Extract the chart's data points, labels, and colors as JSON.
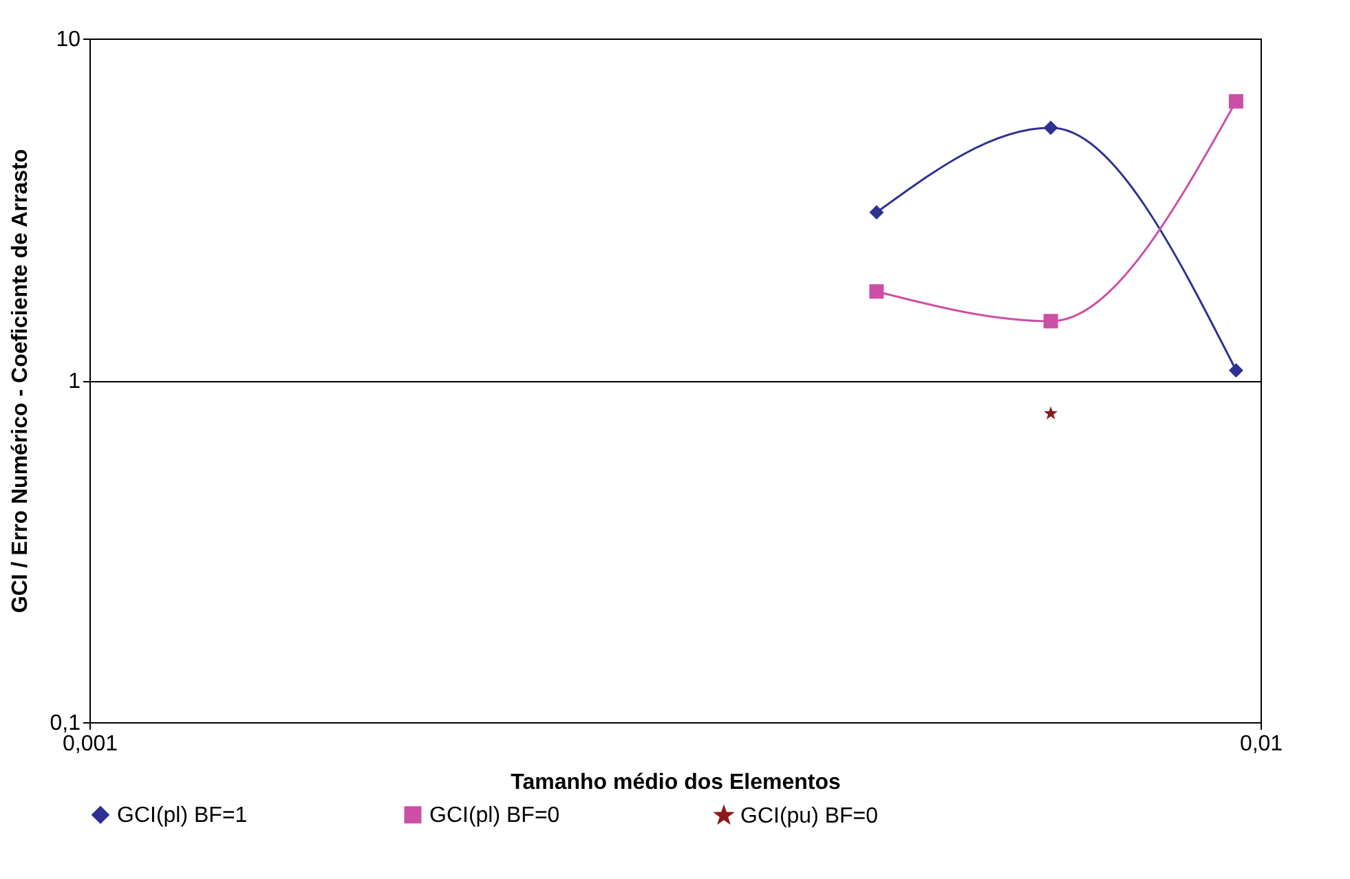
{
  "chart_data": {
    "type": "line",
    "xlabel": "Tamanho médio dos Elementos",
    "ylabel": "GCI / Erro Numérico - Coeficiente de Arrasto",
    "log": "xy",
    "grid": "y",
    "legend": "bottom",
    "xlim": [
      0.001,
      0.01
    ],
    "xticks": [
      {
        "value": 0.001,
        "label": "0,001"
      },
      {
        "value": 0.01,
        "label": "0,01"
      }
    ],
    "ylim": [
      0.1,
      10
    ],
    "yticks": [
      {
        "value": 0.1,
        "label": "0,1"
      },
      1,
      10
    ],
    "series": [
      {
        "name": "GCI(pl) BF=1",
        "color": "#2e3192",
        "marker": "diamond",
        "x": [
          0.0047,
          0.00662,
          0.00953
        ],
        "values": [
          3.1,
          5.48,
          1.07
        ]
      },
      {
        "name": "GCI(pl) BF=0",
        "color": "#cc4fa5",
        "marker": "square",
        "x": [
          0.0047,
          0.00662,
          0.00953
        ],
        "values": [
          1.82,
          1.49,
          6.55
        ]
      },
      {
        "name": "GCI(pu) BF=0",
        "color": "#8b1a1a",
        "marker": "star",
        "x": [
          0.00662
        ],
        "values": [
          0.8
        ]
      }
    ]
  }
}
